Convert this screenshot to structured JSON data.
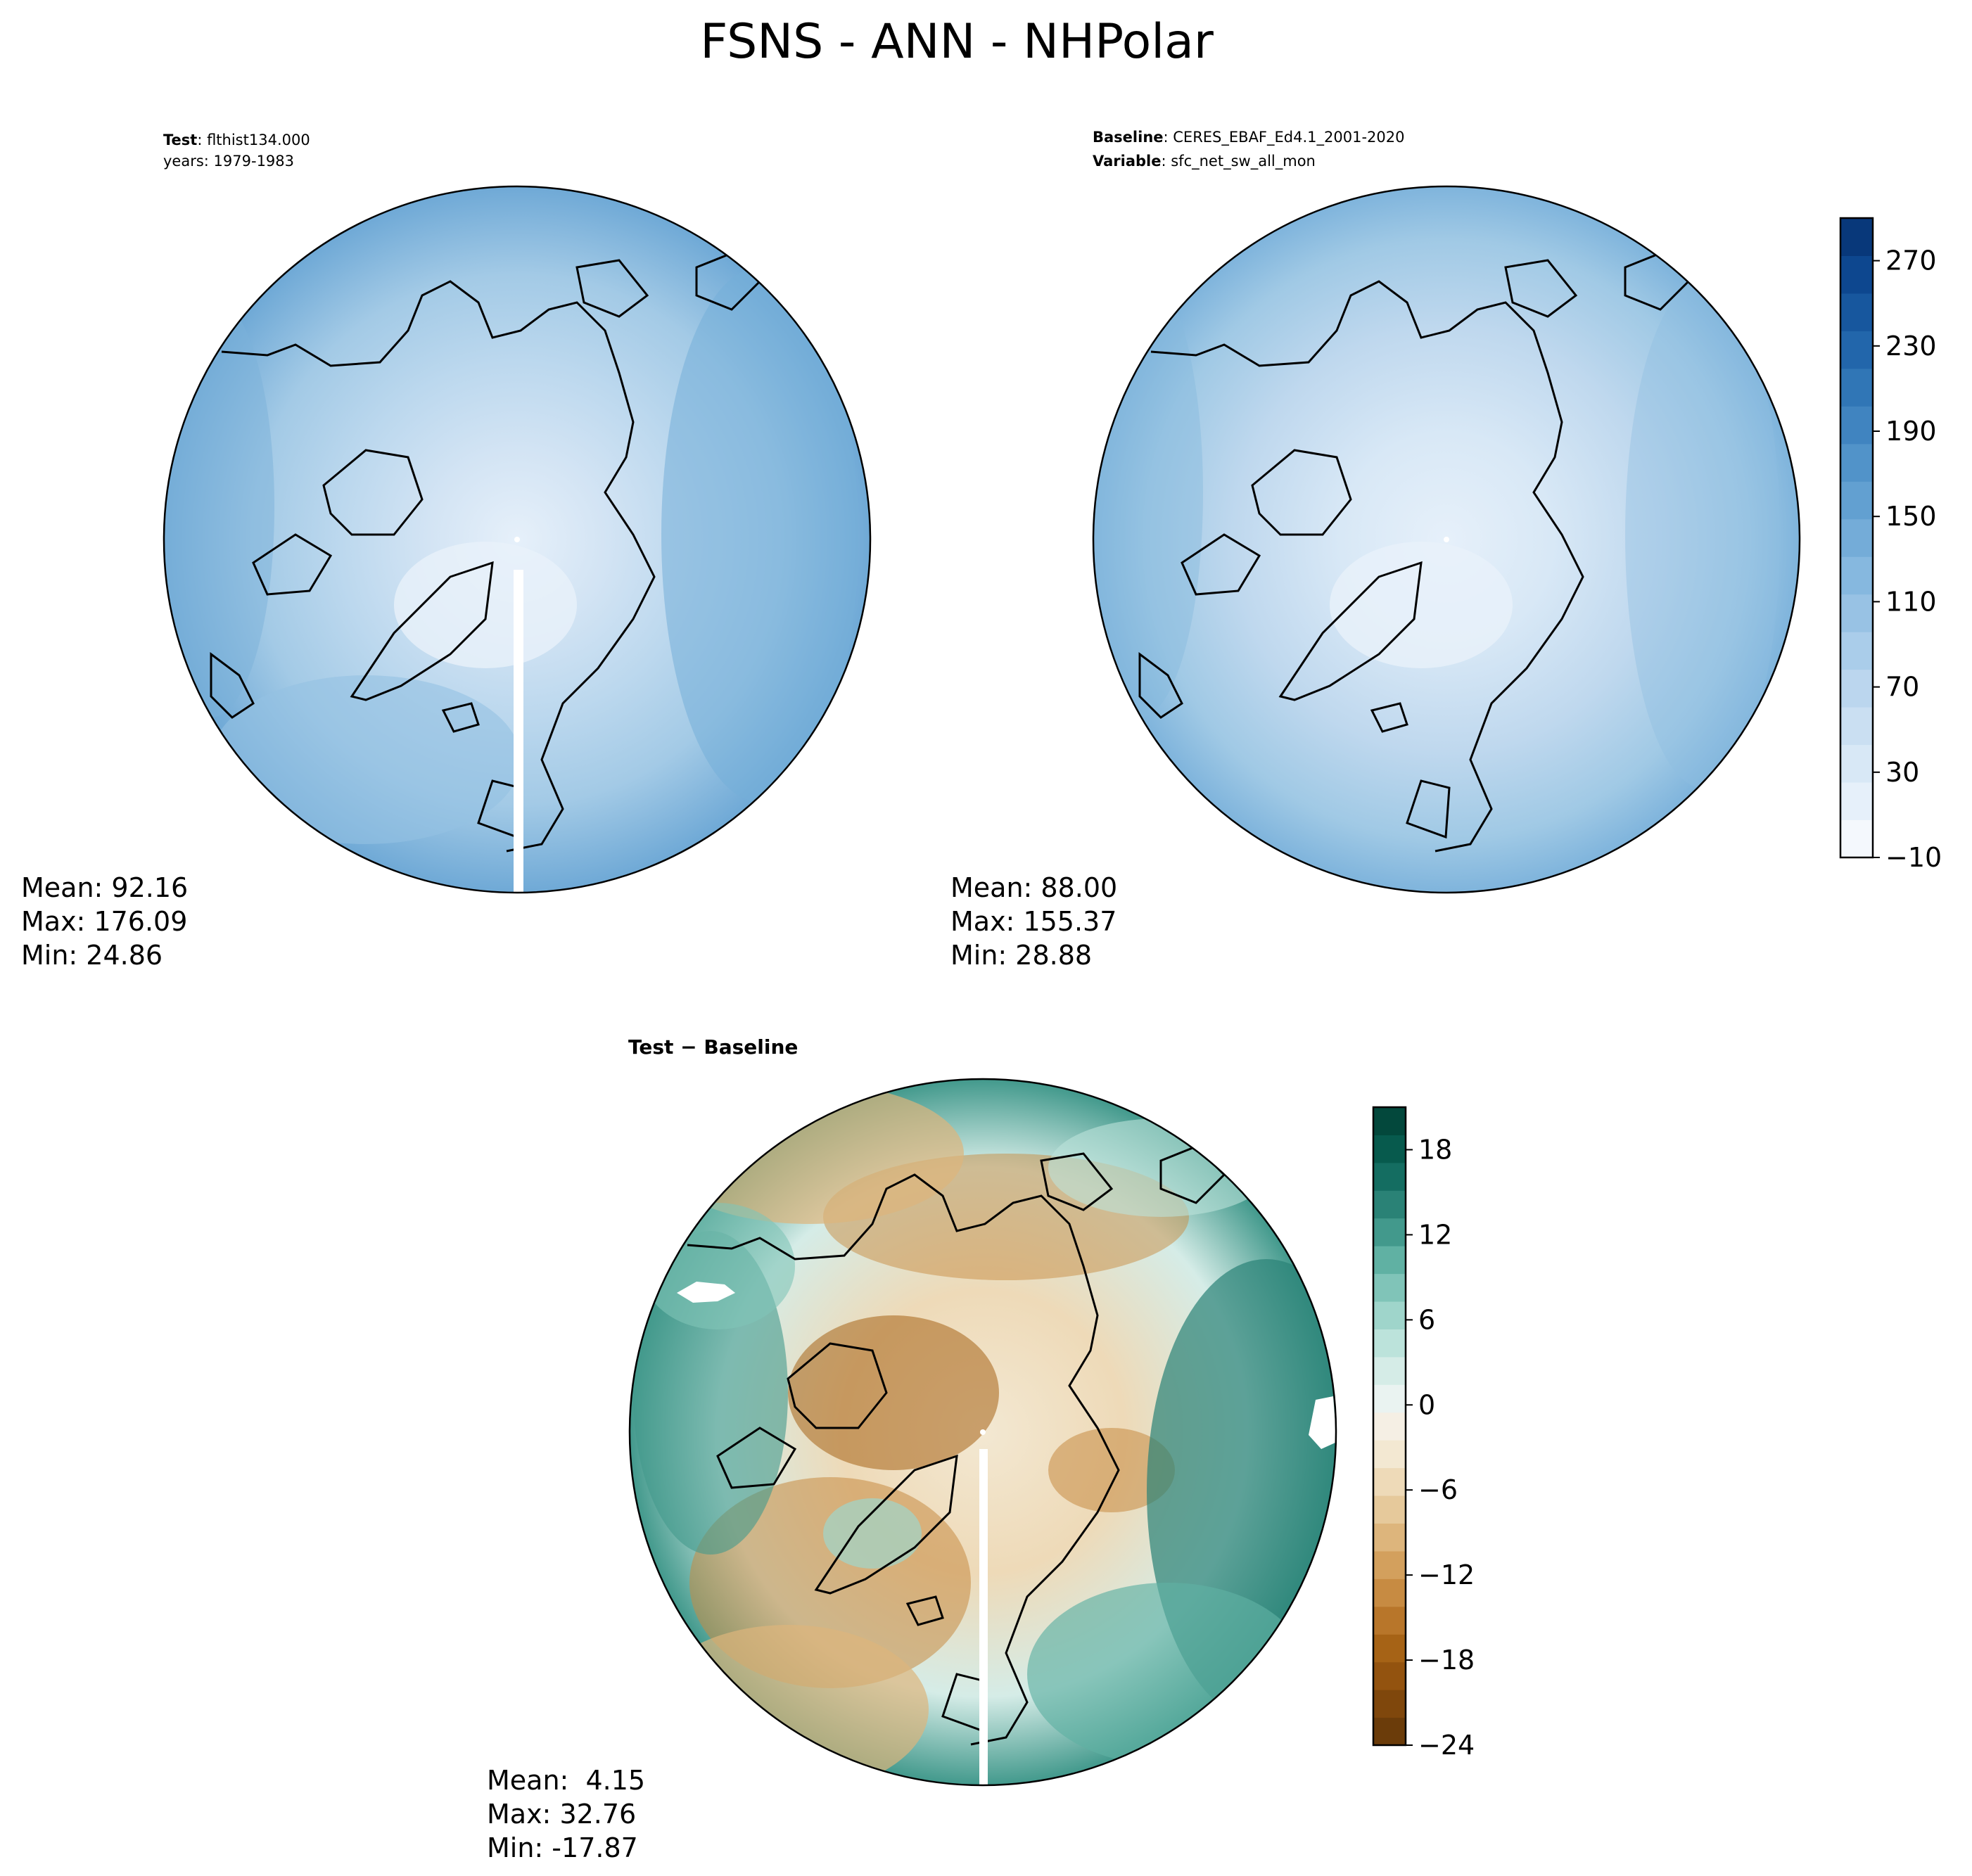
{
  "title": "FSNS - ANN - NHPolar",
  "panels": {
    "test": {
      "label_bold": "Test",
      "label_rest": ": flthist134.000",
      "line2": "years: 1979-1983",
      "stats": {
        "mean": "Mean: 92.16",
        "max": "Max: 176.09",
        "min": "Min: 24.86"
      }
    },
    "baseline": {
      "label_bold": "Baseline",
      "label_rest": ": CERES_EBAF_Ed4.1_2001-2020",
      "line2_bold": "Variable",
      "line2_rest": ": sfc_net_sw_all_mon",
      "stats": {
        "mean": "Mean: 88.00",
        "max": "Max: 155.37",
        "min": "Min: 28.88"
      }
    },
    "diff": {
      "label": "Test − Baseline",
      "stats": {
        "mean": "Mean:  4.15",
        "max": "Max: 32.76",
        "min": "Min: -17.87"
      }
    }
  },
  "colorbar_main": {
    "colormap": "Blues",
    "range": [
      -10,
      290
    ],
    "ticks": [
      "270",
      "230",
      "190",
      "150",
      "110",
      "70",
      "30",
      "−10"
    ],
    "tick_values": [
      270,
      230,
      190,
      150,
      110,
      70,
      30,
      -10
    ],
    "colors": [
      "#f4f8fd",
      "#e6f0fa",
      "#d8e8f6",
      "#cadff2",
      "#bbd6ee",
      "#aacdea",
      "#98c2e4",
      "#86b8df",
      "#74acd8",
      "#62a0d1",
      "#5193c9",
      "#4084c0",
      "#3076b6",
      "#2266ab",
      "#17579e",
      "#0d478f",
      "#08387a"
    ]
  },
  "colorbar_diff": {
    "colormap": "BrBG",
    "range": [
      -24,
      21
    ],
    "ticks": [
      "18",
      "12",
      "6",
      "0",
      "−6",
      "−12",
      "−18",
      "−24"
    ],
    "tick_values": [
      18,
      12,
      6,
      0,
      -6,
      -12,
      -18,
      -24
    ],
    "colors": [
      "#6b3c0a",
      "#7f470c",
      "#93530f",
      "#a66316",
      "#b8762a",
      "#c78b42",
      "#d3a05d",
      "#ddb57c",
      "#e6c99b",
      "#eedab8",
      "#f3e8d2",
      "#f5efe4",
      "#eaf3f1",
      "#d5ece7",
      "#bce3db",
      "#9fd5cb",
      "#80c4b8",
      "#60b1a3",
      "#42998c",
      "#2a8276",
      "#146d61",
      "#075a4d",
      "#03483c"
    ]
  }
}
